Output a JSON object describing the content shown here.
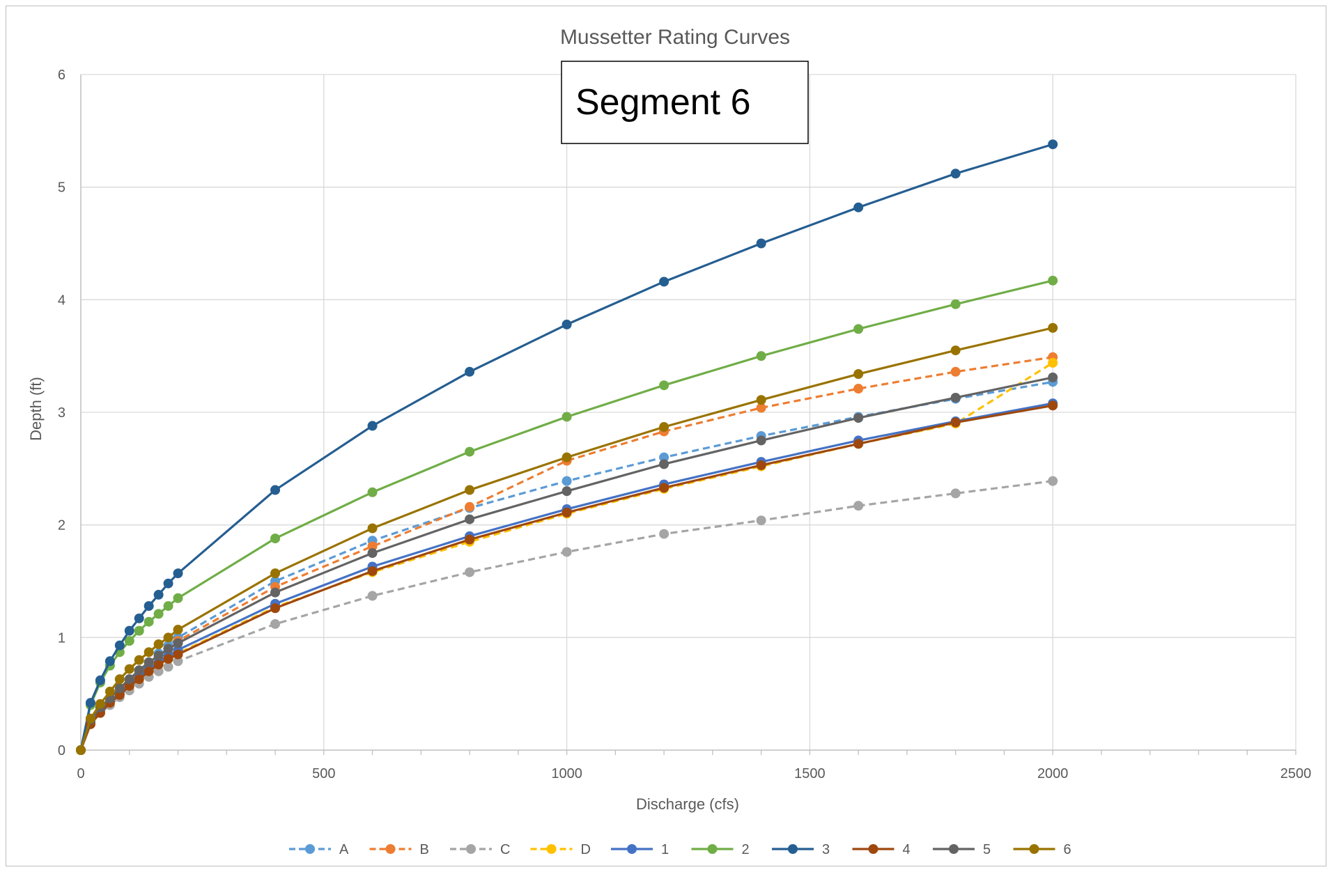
{
  "chart_data": {
    "type": "line",
    "title": "Mussetter Rating Curves",
    "xlabel": "Discharge (cfs)",
    "ylabel": "Depth (ft)",
    "xlim": [
      0,
      2500
    ],
    "ylim": [
      0,
      6
    ],
    "xticks": [
      0,
      500,
      1000,
      1500,
      2000,
      2500
    ],
    "yticks": [
      0,
      1,
      2,
      3,
      4,
      5,
      6
    ],
    "grid": true,
    "legend_position": "bottom",
    "annotation": "Segment 6",
    "x": [
      0,
      20,
      40,
      60,
      80,
      100,
      120,
      140,
      160,
      180,
      200,
      400,
      600,
      800,
      1000,
      1200,
      1400,
      1600,
      1800,
      2000
    ],
    "series": [
      {
        "name": "A",
        "color": "#5b9bd5",
        "dashed": true,
        "values": [
          0,
          0.28,
          0.38,
          0.46,
          0.54,
          0.62,
          0.7,
          0.78,
          0.86,
          0.93,
          1.0,
          1.5,
          1.86,
          2.15,
          2.39,
          2.6,
          2.79,
          2.96,
          3.12,
          3.27
        ]
      },
      {
        "name": "B",
        "color": "#ed7d31",
        "dashed": true,
        "values": [
          0,
          0.27,
          0.37,
          0.45,
          0.53,
          0.6,
          0.68,
          0.75,
          0.83,
          0.9,
          0.97,
          1.45,
          1.81,
          2.16,
          2.57,
          2.83,
          3.04,
          3.21,
          3.36,
          3.49
        ]
      },
      {
        "name": "C",
        "color": "#a5a5a5",
        "dashed": true,
        "values": [
          0,
          0.24,
          0.33,
          0.4,
          0.47,
          0.53,
          0.59,
          0.65,
          0.7,
          0.74,
          0.79,
          1.12,
          1.37,
          1.58,
          1.76,
          1.92,
          2.04,
          2.17,
          2.28,
          2.39
        ]
      },
      {
        "name": "D",
        "color": "#ffc000",
        "dashed": true,
        "values": [
          0,
          0.25,
          0.34,
          0.42,
          0.5,
          0.57,
          0.63,
          0.7,
          0.76,
          0.81,
          0.86,
          1.27,
          1.58,
          1.85,
          2.1,
          2.32,
          2.52,
          2.72,
          2.9,
          3.44
        ]
      },
      {
        "name": "1",
        "color": "#4472c4",
        "dashed": false,
        "values": [
          0,
          0.25,
          0.35,
          0.43,
          0.51,
          0.58,
          0.65,
          0.72,
          0.78,
          0.84,
          0.89,
          1.3,
          1.63,
          1.9,
          2.14,
          2.36,
          2.56,
          2.75,
          2.92,
          3.08
        ]
      },
      {
        "name": "2",
        "color": "#70ad47",
        "dashed": false,
        "values": [
          0,
          0.4,
          0.6,
          0.75,
          0.87,
          0.97,
          1.06,
          1.14,
          1.21,
          1.28,
          1.35,
          1.88,
          2.29,
          2.65,
          2.96,
          3.24,
          3.5,
          3.74,
          3.96,
          4.17
        ]
      },
      {
        "name": "3",
        "color": "#255e91",
        "dashed": false,
        "values": [
          0,
          0.42,
          0.62,
          0.79,
          0.93,
          1.06,
          1.17,
          1.28,
          1.38,
          1.48,
          1.57,
          2.31,
          2.88,
          3.36,
          3.78,
          4.16,
          4.5,
          4.82,
          5.12,
          5.38
        ]
      },
      {
        "name": "4",
        "color": "#9e480e",
        "dashed": false,
        "values": [
          0,
          0.23,
          0.33,
          0.42,
          0.49,
          0.57,
          0.63,
          0.7,
          0.76,
          0.81,
          0.85,
          1.26,
          1.59,
          1.87,
          2.11,
          2.33,
          2.53,
          2.72,
          2.91,
          3.06
        ]
      },
      {
        "name": "5",
        "color": "#636363",
        "dashed": false,
        "values": [
          0,
          0.27,
          0.38,
          0.46,
          0.55,
          0.63,
          0.71,
          0.78,
          0.84,
          0.9,
          0.95,
          1.4,
          1.75,
          2.05,
          2.3,
          2.54,
          2.75,
          2.95,
          3.13,
          3.31
        ]
      },
      {
        "name": "6",
        "color": "#997300",
        "dashed": false,
        "values": [
          0,
          0.28,
          0.41,
          0.52,
          0.63,
          0.72,
          0.8,
          0.87,
          0.94,
          1.0,
          1.07,
          1.57,
          1.97,
          2.31,
          2.6,
          2.87,
          3.11,
          3.34,
          3.55,
          3.75
        ]
      }
    ]
  }
}
